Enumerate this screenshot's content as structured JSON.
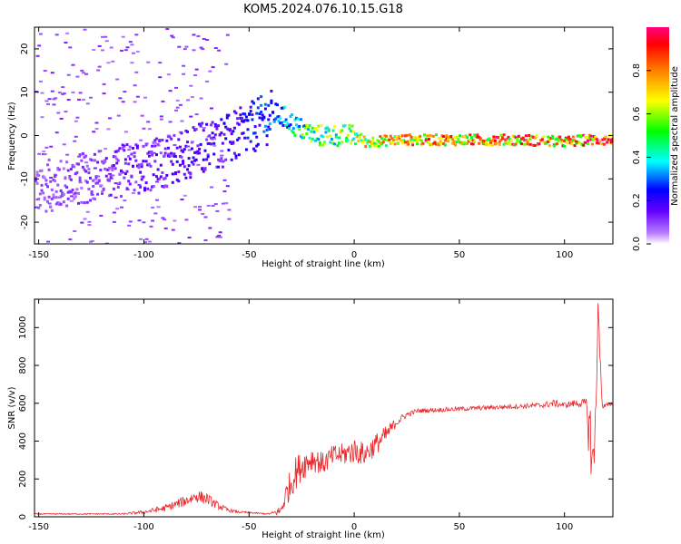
{
  "figure": {
    "title": "KOM5.2024.076.10.15.G18"
  },
  "chart_data": [
    {
      "type": "heatmap",
      "xlabel": "Height of straight line (km)",
      "ylabel": "Frequency (Hz)",
      "xlim": [
        -152,
        123
      ],
      "ylim": [
        -25,
        25
      ],
      "xticks": [
        -150,
        -100,
        -50,
        0,
        50,
        100
      ],
      "yticks": [
        -20,
        -10,
        0,
        10,
        20
      ],
      "grid": false,
      "colorbar": {
        "label": "Normalized spectral amplitude",
        "range": [
          0,
          1
        ],
        "ticks": [
          "0.0",
          "0.2",
          "0.4",
          "0.6",
          "0.8"
        ]
      },
      "ridge": {
        "x": [
          -150,
          -130,
          -110,
          -90,
          -75,
          -60,
          -45,
          -38,
          -33,
          -28,
          -20,
          -10,
          0,
          5,
          20,
          50,
          80,
          100,
          110,
          115,
          123
        ],
        "y": [
          -12,
          -10,
          -8,
          -6,
          -3,
          -1,
          3,
          5,
          4,
          2,
          0,
          0,
          0,
          -1.5,
          -1,
          -1,
          -1,
          -1.5,
          -1,
          -1,
          -1
        ],
        "amplitude": [
          0.1,
          0.12,
          0.15,
          0.18,
          0.2,
          0.22,
          0.3,
          0.35,
          0.4,
          0.55,
          0.6,
          0.65,
          0.7,
          0.75,
          0.85,
          0.9,
          0.92,
          0.95,
          0.97,
          0.95,
          0.93
        ]
      }
    },
    {
      "type": "line",
      "xlabel": "Height of straight line (km)",
      "ylabel": "SNR (v/v)",
      "xlim": [
        -152,
        123
      ],
      "ylim": [
        0,
        1150
      ],
      "xticks": [
        -150,
        -100,
        -50,
        0,
        50,
        100
      ],
      "yticks": [
        0,
        200,
        400,
        600,
        800,
        1000
      ],
      "grid": false,
      "series_color": "#e8282b",
      "x": [
        -150,
        -130,
        -110,
        -100,
        -90,
        -80,
        -75,
        -70,
        -65,
        -60,
        -55,
        -50,
        -45,
        -40,
        -35,
        -32,
        -28,
        -25,
        -20,
        -15,
        -10,
        -5,
        0,
        5,
        10,
        15,
        20,
        25,
        30,
        40,
        50,
        60,
        70,
        80,
        90,
        95,
        100,
        105,
        110,
        112,
        114,
        116,
        118,
        123
      ],
      "y": [
        15,
        15,
        15,
        25,
        45,
        85,
        110,
        95,
        60,
        35,
        25,
        22,
        18,
        15,
        30,
        130,
        230,
        270,
        310,
        280,
        320,
        330,
        350,
        330,
        380,
        430,
        500,
        540,
        560,
        565,
        570,
        575,
        580,
        585,
        590,
        600,
        590,
        600,
        600,
        450,
        250,
        1100,
        580,
        600
      ],
      "jitter": [
        3,
        3,
        4,
        10,
        18,
        30,
        35,
        30,
        20,
        10,
        6,
        5,
        4,
        4,
        30,
        70,
        90,
        80,
        70,
        60,
        60,
        60,
        70,
        60,
        60,
        50,
        25,
        15,
        12,
        12,
        12,
        12,
        12,
        12,
        15,
        20,
        15,
        20,
        25,
        200,
        150,
        80,
        15,
        10
      ]
    }
  ]
}
